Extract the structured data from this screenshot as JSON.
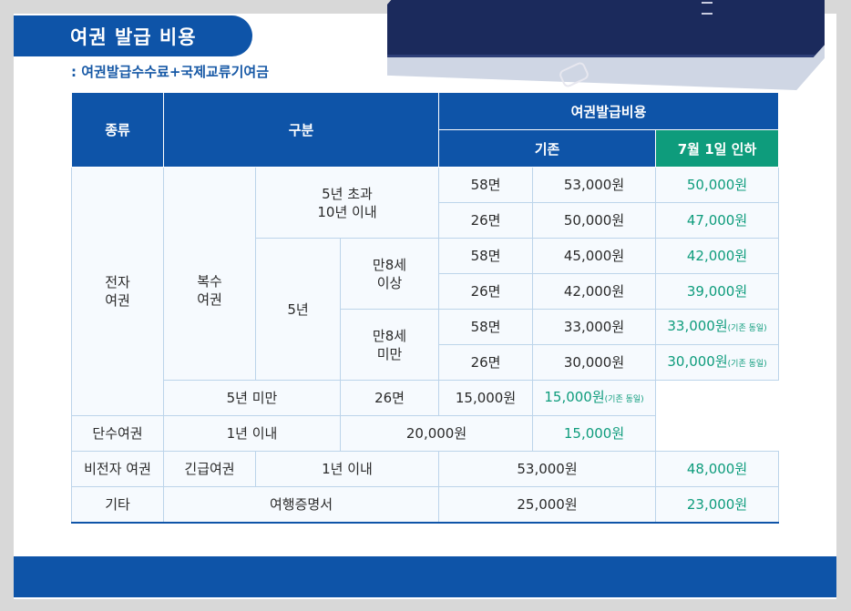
{
  "title": "여권 발급 비용",
  "subtitle": ": 여권발급수수료+국제교류기여금",
  "table": {
    "headers": {
      "type": "종류",
      "category": "구분",
      "fee": "여권발급비용",
      "existing": "기존",
      "new": "7월 1일 인하"
    },
    "labels": {
      "electronic": [
        "전자",
        "여권"
      ],
      "multiple": [
        "복수",
        "여권"
      ],
      "over5": [
        "5년 초과",
        "10년 이내"
      ],
      "five_years": "5년",
      "age8_over": [
        "만8세",
        "이상"
      ],
      "age8_under": [
        "만8세",
        "미만"
      ],
      "under5": "5년 미만",
      "single": "단수여권",
      "within1": "1년 이내",
      "non_electronic": "비전자 여권",
      "emergency": "긴급여권",
      "within1b": "1년 이내",
      "other": "기타",
      "travel_cert": "여행증명서"
    },
    "rows": [
      {
        "pages": "58면",
        "existing": "53,000원",
        "new": "50,000원",
        "note": ""
      },
      {
        "pages": "26면",
        "existing": "50,000원",
        "new": "47,000원",
        "note": ""
      },
      {
        "pages": "58면",
        "existing": "45,000원",
        "new": "42,000원",
        "note": ""
      },
      {
        "pages": "26면",
        "existing": "42,000원",
        "new": "39,000원",
        "note": ""
      },
      {
        "pages": "58면",
        "existing": "33,000원",
        "new": "33,000원",
        "note": "(기존 동일)"
      },
      {
        "pages": "26면",
        "existing": "30,000원",
        "new": "30,000원",
        "note": "(기존 동일)"
      },
      {
        "pages": "26면",
        "existing": "15,000원",
        "new": "15,000원",
        "note": "(기존 동일)"
      },
      {
        "pages": "",
        "existing": "20,000원",
        "new": "15,000원",
        "note": ""
      },
      {
        "pages": "",
        "existing": "53,000원",
        "new": "48,000원",
        "note": ""
      },
      {
        "pages": "",
        "existing": "25,000원",
        "new": "23,000원",
        "note": ""
      }
    ]
  },
  "colors": {
    "header_blue": "#0e54a8",
    "header_green": "#0e9c7c",
    "new_price_text": "#0e9c7c"
  }
}
